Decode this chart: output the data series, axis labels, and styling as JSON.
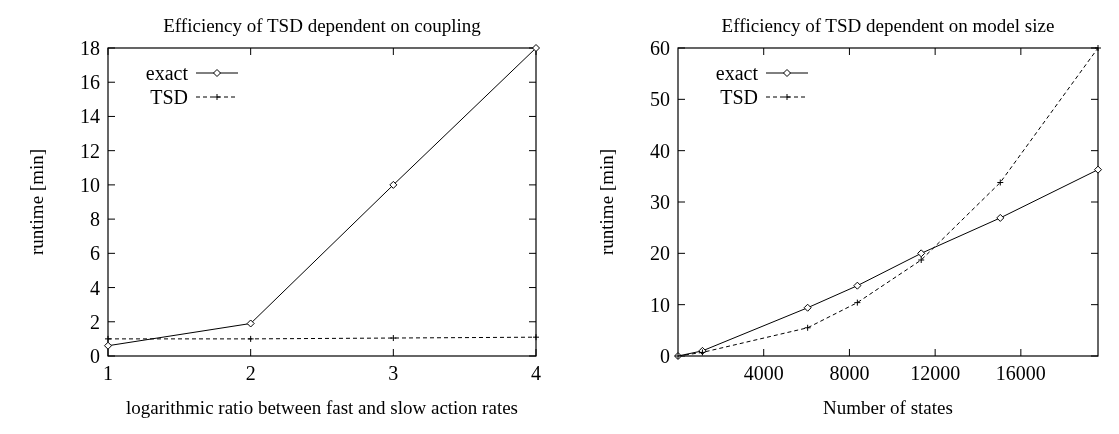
{
  "chart_data": [
    {
      "type": "line",
      "title": "Efficiency of TSD dependent on coupling",
      "xlabel": "logarithmic ratio between fast and slow action rates",
      "ylabel": "runtime [min]",
      "x": [
        1,
        2,
        3,
        4
      ],
      "xlim": [
        1,
        4
      ],
      "xticks": [
        1,
        2,
        3,
        4
      ],
      "ylim": [
        0,
        18
      ],
      "yticks": [
        0,
        2,
        4,
        6,
        8,
        10,
        12,
        14,
        16,
        18
      ],
      "grid": false,
      "legend": "top left",
      "series": [
        {
          "name": "exact",
          "color": "#000000",
          "values": [
            0.6,
            1.9,
            10.0,
            18.0
          ],
          "marker": "diamond",
          "line_style": "solid"
        },
        {
          "name": "TSD",
          "color": "#000000",
          "values": [
            1.0,
            1.0,
            1.05,
            1.1
          ],
          "marker": "cross",
          "line_style": "dashed"
        }
      ]
    },
    {
      "type": "line",
      "title": "Efficiency of TSD dependent on model size",
      "xlabel": "Number of states",
      "ylabel": "runtime [min]",
      "xlim": [
        0,
        19600
      ],
      "xticks": [
        4000,
        8000,
        12000,
        16000
      ],
      "ylim": [
        0,
        60
      ],
      "yticks": [
        0,
        10,
        20,
        30,
        40,
        50,
        60
      ],
      "grid": false,
      "legend": "top left",
      "series": [
        {
          "name": "exact",
          "color": "#000000",
          "x": [
            0,
            1140,
            6050,
            8370,
            11350,
            15040,
            19600
          ],
          "values": [
            0,
            1.0,
            9.4,
            13.7,
            20.0,
            26.9,
            36.3
          ],
          "marker": "diamond",
          "line_style": "solid"
        },
        {
          "name": "TSD",
          "color": "#000000",
          "x": [
            0,
            1140,
            6050,
            8370,
            11350,
            15040,
            19600
          ],
          "values": [
            0,
            0.7,
            5.5,
            10.4,
            18.7,
            33.8,
            60
          ],
          "marker": "cross",
          "line_style": "dashed"
        }
      ]
    }
  ]
}
